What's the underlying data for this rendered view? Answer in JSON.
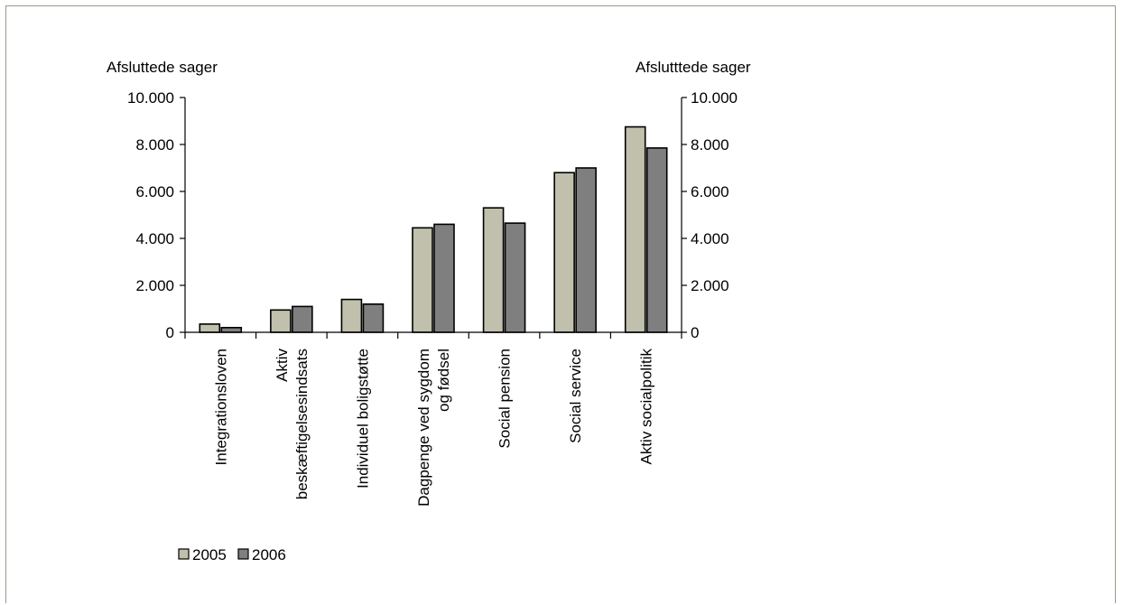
{
  "chart_data": {
    "type": "bar",
    "ylabel_left": "Afsluttede sager",
    "ylabel_right": "Afslutttede sager",
    "ylim": [
      0,
      10000
    ],
    "y_ticks": [
      0,
      2000,
      4000,
      6000,
      8000,
      10000
    ],
    "y_tick_labels": [
      "0",
      "2.000",
      "4.000",
      "6.000",
      "8.000",
      "10.000"
    ],
    "categories": [
      [
        "Integrationsloven"
      ],
      [
        "Aktiv",
        "beskæftigelsesindsats"
      ],
      [
        "Individuel boligstøtte"
      ],
      [
        "Dagpenge ved sygdom",
        "og fødsel"
      ],
      [
        "Social pension"
      ],
      [
        "Social service"
      ],
      [
        "Aktiv socialpolitik"
      ]
    ],
    "series": [
      {
        "name": "2005",
        "color": "#c0c0ac",
        "values": [
          350,
          950,
          1400,
          4450,
          5300,
          6800,
          8750
        ]
      },
      {
        "name": "2006",
        "color": "#7f7f7f",
        "values": [
          200,
          1100,
          1200,
          4600,
          4650,
          7000,
          7850
        ]
      }
    ],
    "legend_position": "bottom-left",
    "grid": false
  }
}
